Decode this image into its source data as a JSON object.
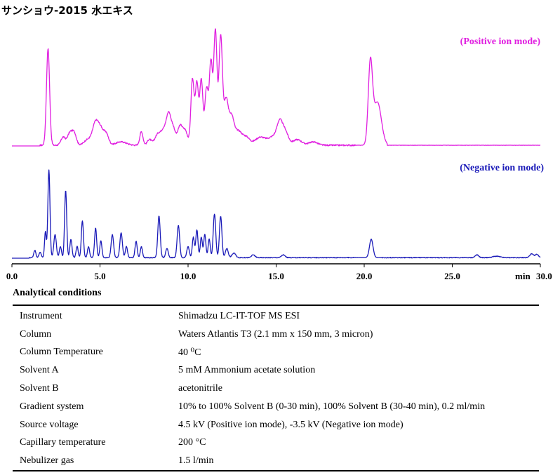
{
  "title": "サンショウ-2015 水エキス",
  "chart_data": {
    "type": "line",
    "xlim": [
      0,
      30
    ],
    "xlabel": "min",
    "xticks": [
      "0.0",
      "5.0",
      "10.0",
      "15.0",
      "20.0",
      "25.0",
      "30.0"
    ],
    "grid": false,
    "series": [
      {
        "name": "(Positive ion mode)",
        "color": "#e020e0",
        "baseline": 0.02,
        "noise": 0.012,
        "peaks": [
          [
            2.05,
            0.85,
            0.09
          ],
          [
            2.9,
            0.07,
            0.12
          ],
          [
            3.3,
            0.11,
            0.15
          ],
          [
            3.55,
            0.09,
            0.12
          ],
          [
            4.3,
            0.05,
            0.2
          ],
          [
            4.75,
            0.2,
            0.17
          ],
          [
            5.05,
            0.12,
            0.15
          ],
          [
            5.35,
            0.1,
            0.14
          ],
          [
            6.2,
            0.03,
            0.3
          ],
          [
            7.35,
            0.12,
            0.09
          ],
          [
            7.8,
            0.05,
            0.12
          ],
          [
            8.3,
            0.1,
            0.18
          ],
          [
            8.65,
            0.13,
            0.15
          ],
          [
            8.9,
            0.24,
            0.12
          ],
          [
            9.15,
            0.15,
            0.13
          ],
          [
            9.55,
            0.17,
            0.14
          ],
          [
            9.85,
            0.12,
            0.13
          ],
          [
            10.25,
            0.58,
            0.09
          ],
          [
            10.5,
            0.54,
            0.09
          ],
          [
            10.75,
            0.57,
            0.09
          ],
          [
            11.05,
            0.5,
            0.1
          ],
          [
            11.3,
            0.72,
            0.09
          ],
          [
            11.55,
            1.0,
            0.09
          ],
          [
            11.85,
            0.96,
            0.1
          ],
          [
            12.15,
            0.38,
            0.12
          ],
          [
            12.45,
            0.25,
            0.15
          ],
          [
            12.85,
            0.12,
            0.2
          ],
          [
            13.3,
            0.07,
            0.2
          ],
          [
            14.1,
            0.07,
            0.3
          ],
          [
            14.9,
            0.08,
            0.3
          ],
          [
            15.2,
            0.15,
            0.15
          ],
          [
            15.5,
            0.12,
            0.18
          ],
          [
            16.2,
            0.05,
            0.25
          ],
          [
            17.1,
            0.03,
            0.25
          ],
          [
            20.35,
            0.7,
            0.12
          ],
          [
            20.75,
            0.38,
            0.22
          ]
        ]
      },
      {
        "name": "(Negative ion mode)",
        "color": "#1a1ab8",
        "baseline": 0.02,
        "noise": 0.008,
        "peaks": [
          [
            1.3,
            0.08,
            0.06
          ],
          [
            1.6,
            0.06,
            0.06
          ],
          [
            1.9,
            0.28,
            0.05
          ],
          [
            2.1,
            0.95,
            0.06
          ],
          [
            2.45,
            0.25,
            0.07
          ],
          [
            2.75,
            0.12,
            0.06
          ],
          [
            3.05,
            0.73,
            0.06
          ],
          [
            3.35,
            0.2,
            0.06
          ],
          [
            3.7,
            0.12,
            0.06
          ],
          [
            4.0,
            0.4,
            0.06
          ],
          [
            4.35,
            0.12,
            0.06
          ],
          [
            4.75,
            0.32,
            0.06
          ],
          [
            5.05,
            0.18,
            0.06
          ],
          [
            5.7,
            0.25,
            0.07
          ],
          [
            6.2,
            0.27,
            0.07
          ],
          [
            6.5,
            0.12,
            0.06
          ],
          [
            7.05,
            0.18,
            0.06
          ],
          [
            7.35,
            0.12,
            0.06
          ],
          [
            8.35,
            0.45,
            0.07
          ],
          [
            8.8,
            0.1,
            0.07
          ],
          [
            9.45,
            0.35,
            0.07
          ],
          [
            10.0,
            0.12,
            0.07
          ],
          [
            10.3,
            0.22,
            0.06
          ],
          [
            10.5,
            0.3,
            0.06
          ],
          [
            10.75,
            0.22,
            0.06
          ],
          [
            10.95,
            0.25,
            0.06
          ],
          [
            11.2,
            0.2,
            0.06
          ],
          [
            11.5,
            0.47,
            0.07
          ],
          [
            11.85,
            0.45,
            0.07
          ],
          [
            12.2,
            0.1,
            0.08
          ],
          [
            12.6,
            0.05,
            0.1
          ],
          [
            13.7,
            0.03,
            0.1
          ],
          [
            15.4,
            0.03,
            0.1
          ],
          [
            20.4,
            0.2,
            0.1
          ],
          [
            26.4,
            0.03,
            0.1
          ],
          [
            27.5,
            0.015,
            0.2
          ],
          [
            29.5,
            0.04,
            0.1
          ],
          [
            29.8,
            0.035,
            0.1
          ]
        ]
      }
    ]
  },
  "conditions": {
    "title": "Analytical conditions",
    "rows": [
      {
        "param": "Instrument",
        "value": "Shimadzu LC-IT-TOF MS ESI"
      },
      {
        "param": "Column",
        "value": "Waters Atlantis T3 (2.1 mm x 150 mm, 3 micron)"
      },
      {
        "param": "Column Temperature",
        "value": "40 ⁰C"
      },
      {
        "param": "Solvent A",
        "value": "5 mM Ammonium acetate solution"
      },
      {
        "param": "Solvent B",
        "value": "acetonitrile"
      },
      {
        "param": "Gradient system",
        "value": "10% to 100% Solvent B (0-30 min), 100% Solvent B (30-40 min), 0.2 ml/min"
      },
      {
        "param": "Source voltage",
        "value": "4.5 kV (Positive ion mode), -3.5 kV (Negative ion mode)"
      },
      {
        "param": "Capillary temperature",
        "value": "200 °C"
      },
      {
        "param": "Nebulizer gas",
        "value": "1.5 l/min"
      }
    ]
  }
}
